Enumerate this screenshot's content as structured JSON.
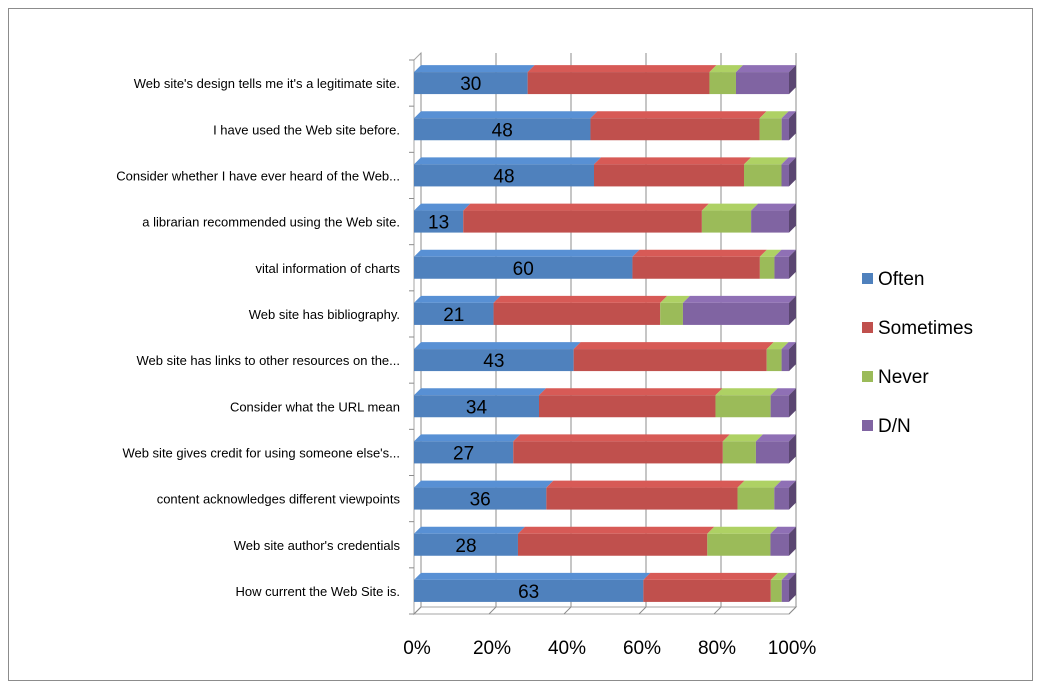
{
  "chart_data": {
    "type": "bar",
    "orientation": "horizontal",
    "stacked": "percent",
    "categories": [
      "Web site's design tells me it's  a legitimate site.",
      "I have used the Web site before.",
      "Consider whether I have ever heard of the Web...",
      "a librarian recommended using the Web site.",
      "vital information of charts",
      "Web site has bibliography.",
      "Web site has links to other resources on the...",
      "Consider what the URL mean",
      "Web site gives credit for using someone else's...",
      "content acknowledges different viewpoints",
      "Web site author's credentials",
      "How current the Web Site is."
    ],
    "series": [
      {
        "name": "Often",
        "color": "#4F81BD",
        "values": [
          30,
          48,
          48,
          13,
          60,
          21,
          43,
          34,
          27,
          36,
          28,
          63
        ]
      },
      {
        "name": "Sometimes",
        "color": "#C0504D",
        "values": [
          48,
          46,
          40,
          63,
          35,
          44,
          52,
          48,
          57,
          52,
          51,
          35
        ]
      },
      {
        "name": "Never",
        "color": "#9BBB59",
        "values": [
          7,
          6,
          10,
          13,
          4,
          6,
          4,
          15,
          9,
          10,
          17,
          3
        ]
      },
      {
        "name": "D/N",
        "color": "#8064A2",
        "values": [
          14,
          2,
          2,
          10,
          4,
          28,
          2,
          5,
          9,
          4,
          5,
          2
        ]
      }
    ],
    "data_labels": [
      30,
      48,
      48,
      13,
      60,
      21,
      43,
      34,
      27,
      36,
      28,
      63
    ],
    "x_ticks": [
      "0%",
      "20%",
      "40%",
      "60%",
      "80%",
      "100%"
    ],
    "xlim": [
      0,
      100
    ],
    "grid": true,
    "legend": "right",
    "title": "",
    "xlabel": "",
    "ylabel": ""
  }
}
